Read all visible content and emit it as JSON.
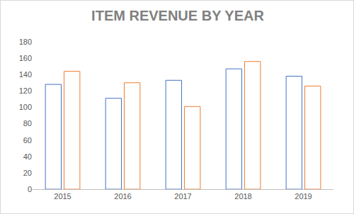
{
  "chart_data": {
    "type": "bar",
    "title": "ITEM REVENUE BY YEAR",
    "categories": [
      "2015",
      "2016",
      "2017",
      "2018",
      "2019"
    ],
    "series": [
      {
        "color": "#4472c4",
        "values": [
          128,
          111,
          133,
          147,
          138
        ]
      },
      {
        "color": "#ed7d31",
        "values": [
          144,
          130,
          101,
          156,
          126
        ]
      }
    ],
    "ylim": [
      0,
      180
    ],
    "yticks": [
      0,
      20,
      40,
      60,
      80,
      100,
      120,
      140,
      160,
      180
    ],
    "grid": false
  }
}
